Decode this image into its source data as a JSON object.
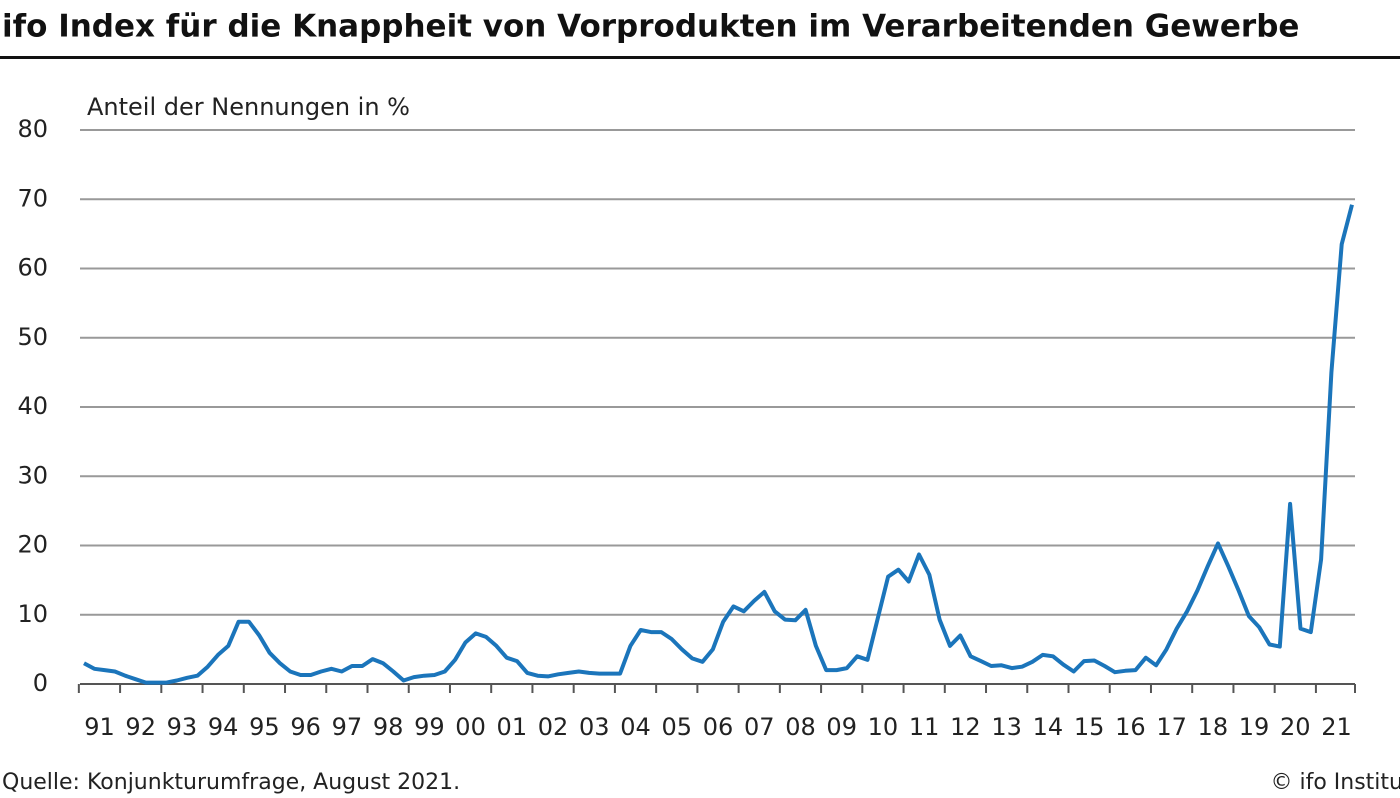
{
  "chart_data": {
    "type": "line",
    "title": "ifo Index für die Knappheit von Vorprodukten im Verarbeitenden Gewerbe",
    "y_label": "Anteil der Nennungen in %",
    "source": "Quelle: Konjunkturumfrage, August 2021.",
    "credit": "© ifo Institut",
    "categories": [
      "91",
      null,
      null,
      null,
      "92",
      null,
      null,
      null,
      "93",
      null,
      null,
      null,
      "94",
      null,
      null,
      null,
      "95",
      null,
      null,
      null,
      "96",
      null,
      null,
      null,
      "97",
      null,
      null,
      null,
      "98",
      null,
      null,
      null,
      "99",
      null,
      null,
      null,
      "00",
      null,
      null,
      null,
      "01",
      null,
      null,
      null,
      "02",
      null,
      null,
      null,
      "03",
      null,
      null,
      null,
      "04",
      null,
      null,
      null,
      "05",
      null,
      null,
      null,
      "06",
      null,
      null,
      null,
      "07",
      null,
      null,
      null,
      "08",
      null,
      null,
      null,
      "09",
      null,
      null,
      null,
      "10",
      null,
      null,
      null,
      "11",
      null,
      null,
      null,
      "12",
      null,
      null,
      null,
      "13",
      null,
      null,
      null,
      "14",
      null,
      null,
      null,
      "15",
      null,
      null,
      null,
      "16",
      null,
      null,
      null,
      "17",
      null,
      null,
      null,
      "18",
      null,
      null,
      null,
      "19",
      null,
      null,
      null,
      "20",
      null,
      null,
      null,
      "21",
      null,
      null,
      null
    ],
    "series": [
      {
        "name": "ifo Index",
        "color": "#1b75bb",
        "values": [
          3,
          2.2,
          2,
          1.8,
          1.2,
          0.7,
          0.2,
          0.2,
          0.2,
          0.5,
          0.9,
          1.2,
          2.5,
          4.2,
          5.5,
          9,
          9,
          7,
          4.5,
          3,
          1.8,
          1.3,
          1.3,
          1.8,
          2.2,
          1.8,
          2.6,
          2.6,
          3.6,
          3,
          1.8,
          0.5,
          1,
          1.2,
          1.3,
          1.8,
          3.5,
          6,
          7.3,
          6.8,
          5.5,
          3.8,
          3.3,
          1.6,
          1.2,
          1.1,
          1.4,
          1.6,
          1.8,
          1.6,
          1.5,
          1.5,
          1.5,
          5.5,
          7.8,
          7.5,
          7.5,
          6.5,
          5,
          3.7,
          3.2,
          5,
          9,
          11.2,
          10.5,
          12,
          13.3,
          10.5,
          9.3,
          9.2,
          10.7,
          5.5,
          2,
          2,
          2.3,
          4,
          3.5,
          9.5,
          15.5,
          16.5,
          14.8,
          18.7,
          15.8,
          9.3,
          5.5,
          7,
          4,
          3.3,
          2.6,
          2.7,
          2.3,
          2.5,
          3.2,
          4.2,
          4,
          2.8,
          1.8,
          3.3,
          3.4,
          2.6,
          1.7,
          1.9,
          2,
          3.8,
          2.7,
          5,
          8,
          10.5,
          13.5,
          17,
          20.3,
          17,
          13.5,
          9.8,
          8.2,
          5.7,
          5.4,
          26,
          8,
          7.5,
          18,
          45,
          63.5,
          69.2
        ]
      }
    ],
    "ylim": [
      0,
      80
    ],
    "yticks": [
      0,
      10,
      20,
      30,
      40,
      50,
      60,
      70,
      80
    ],
    "grid": true
  }
}
